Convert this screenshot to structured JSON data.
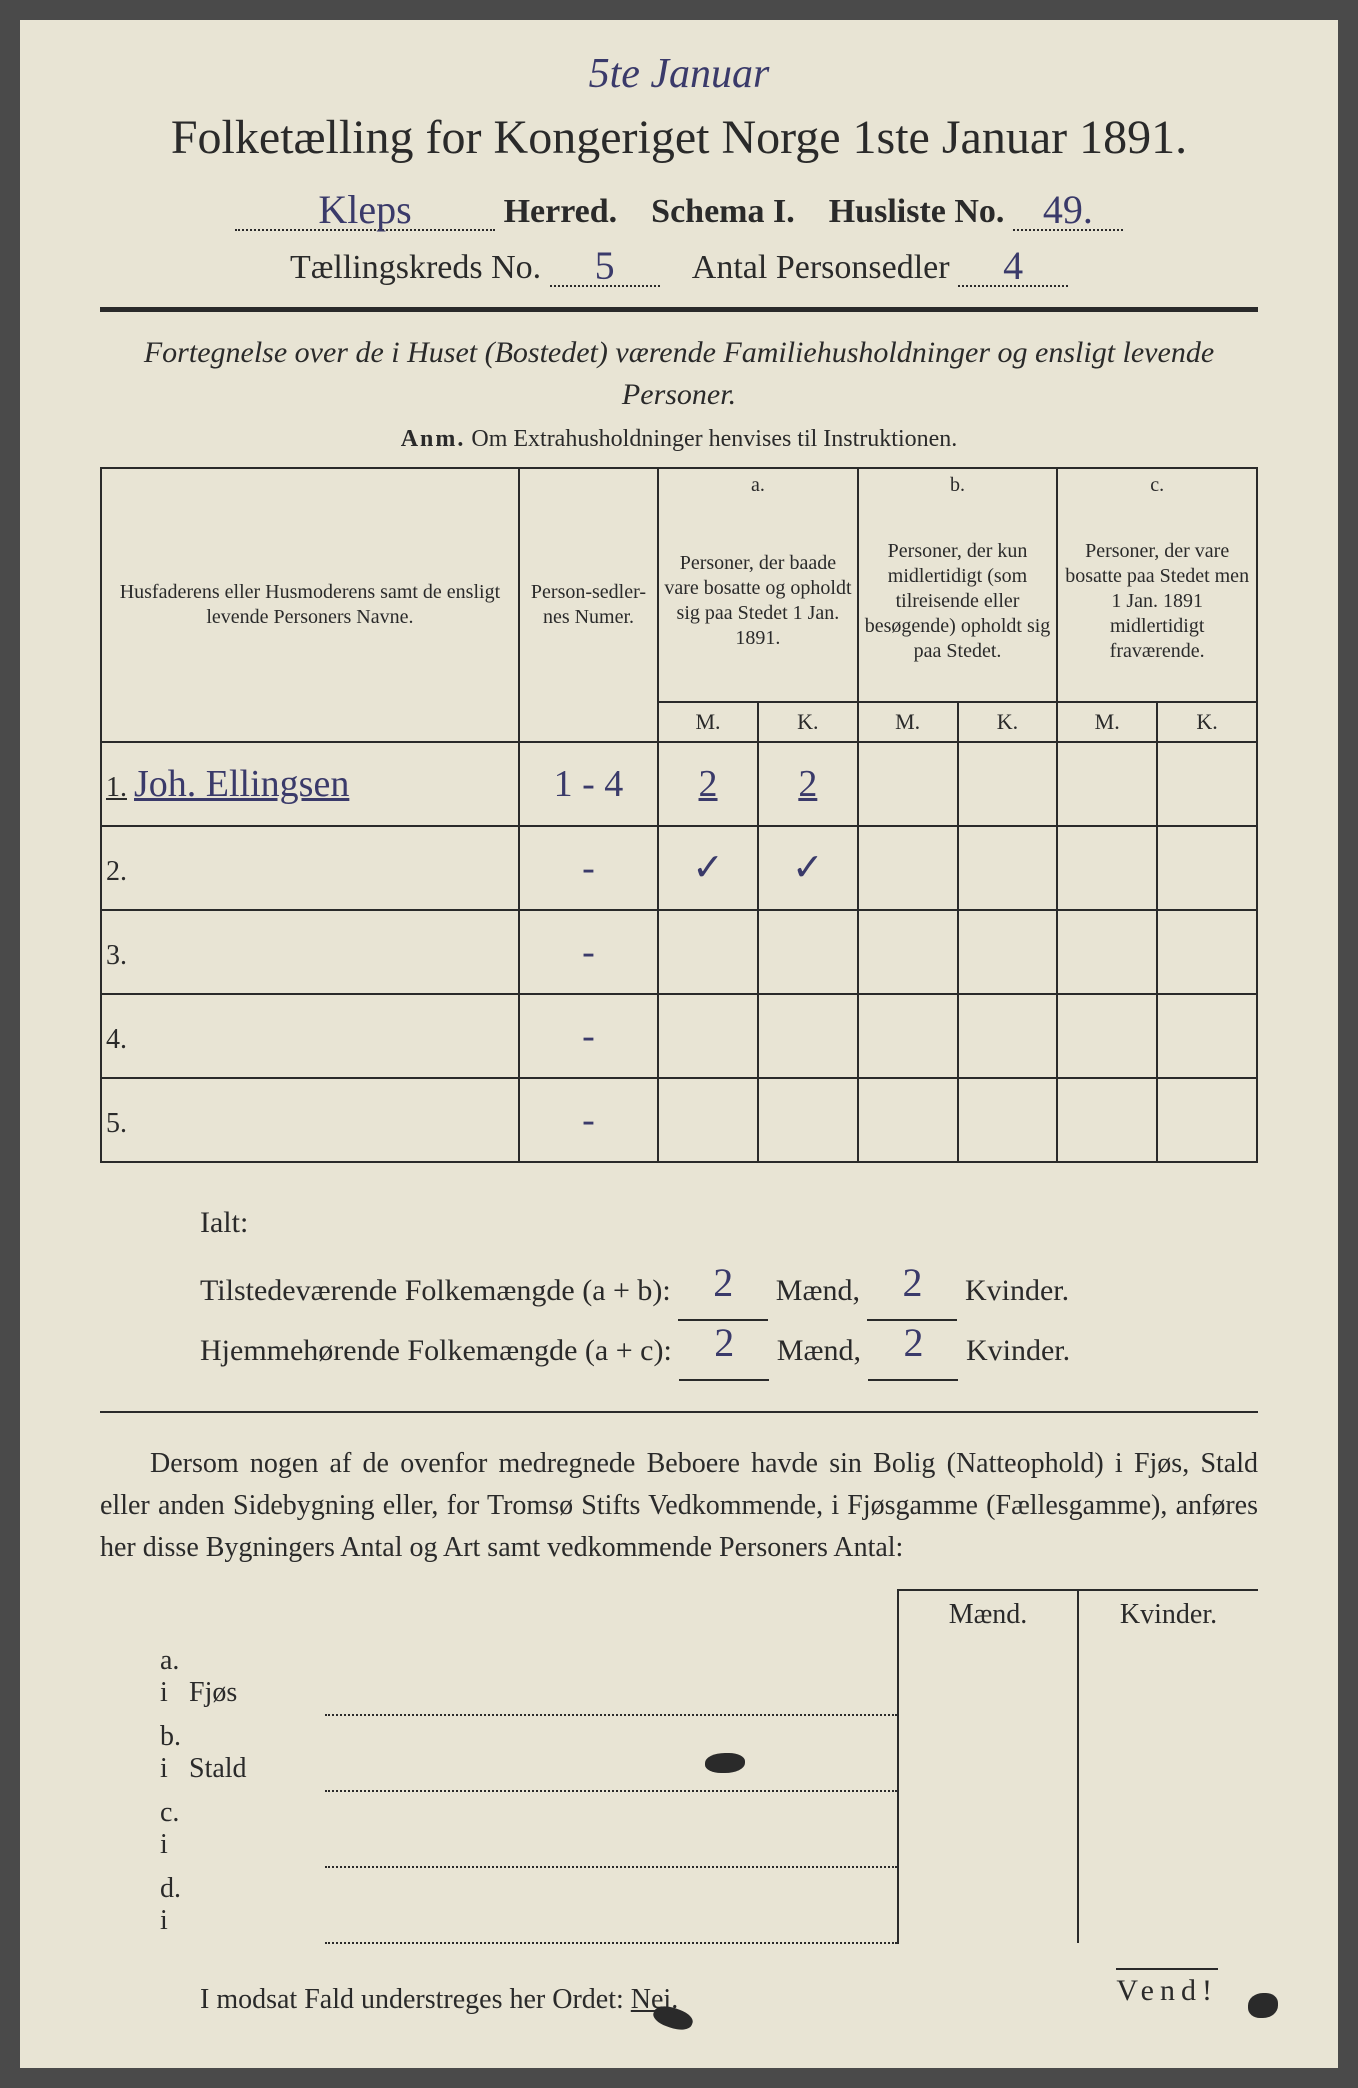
{
  "colors": {
    "page_bg": "#e8e4d4",
    "ink": "#2a2a2a",
    "handwriting": "#3a3a6a",
    "outer_bg": "#4a4a4a"
  },
  "top_handwritten": "5te Januar",
  "title": "Folketælling for Kongeriget Norge 1ste Januar 1891.",
  "header_line1": {
    "herred_value": "Kleps",
    "herred_label": "Herred.",
    "schema_label": "Schema I.",
    "husliste_label": "Husliste No.",
    "husliste_value": "49."
  },
  "header_line2": {
    "kreds_label": "Tællingskreds No.",
    "kreds_value": "5",
    "antal_label": "Antal Personsedler",
    "antal_value": "4"
  },
  "subtitle": "Fortegnelse over de i Huset (Bostedet) værende Familiehusholdninger og ensligt levende Personer.",
  "anm_label": "Anm.",
  "anm_text": "Om Extrahusholdninger henvises til Instruktionen.",
  "table": {
    "col_names": "Husfaderens eller Husmoderens samt de ensligt levende Personers Navne.",
    "col_num": "Person-sedler-nes Numer.",
    "col_a_head": "a.",
    "col_a": "Personer, der baade vare bosatte og opholdt sig paa Stedet 1 Jan. 1891.",
    "col_b_head": "b.",
    "col_b": "Personer, der kun midlertidigt (som tilreisende eller besøgende) opholdt sig paa Stedet.",
    "col_c_head": "c.",
    "col_c": "Personer, der vare bosatte paa Stedet men 1 Jan. 1891 midlertidigt fraværende.",
    "mk_m": "M.",
    "mk_k": "K.",
    "rows": [
      {
        "n": "1.",
        "name": "Joh. Ellingsen",
        "num": "1 - 4",
        "a_m": "2",
        "a_k": "2",
        "b_m": "",
        "b_k": "",
        "c_m": "",
        "c_k": ""
      },
      {
        "n": "2.",
        "name": "",
        "num": "-",
        "a_m": "✓",
        "a_k": "✓",
        "b_m": "",
        "b_k": "",
        "c_m": "",
        "c_k": ""
      },
      {
        "n": "3.",
        "name": "",
        "num": "-",
        "a_m": "",
        "a_k": "",
        "b_m": "",
        "b_k": "",
        "c_m": "",
        "c_k": ""
      },
      {
        "n": "4.",
        "name": "",
        "num": "-",
        "a_m": "",
        "a_k": "",
        "b_m": "",
        "b_k": "",
        "c_m": "",
        "c_k": ""
      },
      {
        "n": "5.",
        "name": "",
        "num": "-",
        "a_m": "",
        "a_k": "",
        "b_m": "",
        "b_k": "",
        "c_m": "",
        "c_k": ""
      }
    ]
  },
  "totals": {
    "ialt": "Ialt:",
    "line1_label": "Tilstedeværende Folkemængde (a + b):",
    "line2_label": "Hjemmehørende Folkemængde (a + c):",
    "maend": "Mænd,",
    "kvinder": "Kvinder.",
    "line1_m": "2",
    "line1_k": "2",
    "line2_m": "2",
    "line2_k": "2"
  },
  "paragraph": "Dersom nogen af de ovenfor medregnede Beboere havde sin Bolig (Natteophold) i Fjøs, Stald eller anden Sidebygning eller, for Tromsø Stifts Vedkommende, i Fjøsgamme (Fællesgamme), anføres her disse Bygningers Antal og Art samt vedkommende Personers Antal:",
  "buildings": {
    "head_m": "Mænd.",
    "head_k": "Kvinder.",
    "rows": [
      {
        "lbl": "a.  i",
        "name": "Fjøs"
      },
      {
        "lbl": "b.  i",
        "name": "Stald"
      },
      {
        "lbl": "c.  i",
        "name": ""
      },
      {
        "lbl": "d.  i",
        "name": ""
      }
    ]
  },
  "modsat": "I modsat Fald understreges her Ordet:",
  "nei": "Nei.",
  "vend": "Vend!"
}
